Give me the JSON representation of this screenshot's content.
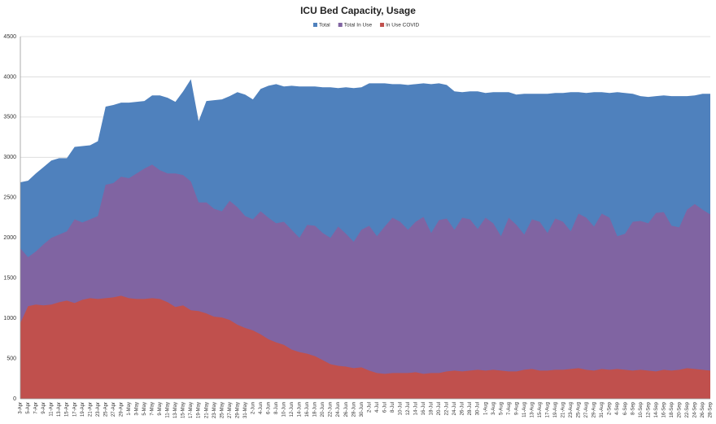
{
  "chart_data": {
    "type": "area",
    "title": "ICU Bed Capacity, Usage",
    "categories": [
      "3-Apr",
      "5-Apr",
      "7-Apr",
      "9-Apr",
      "11-Apr",
      "13-Apr",
      "15-Apr",
      "17-Apr",
      "19-Apr",
      "21-Apr",
      "23-Apr",
      "25-Apr",
      "27-Apr",
      "29-Apr",
      "1-May",
      "3-May",
      "5-May",
      "7-May",
      "9-May",
      "11-May",
      "13-May",
      "15-May",
      "17-May",
      "19-May",
      "21-May",
      "23-May",
      "25-May",
      "27-May",
      "29-May",
      "31-May",
      "2-Jun",
      "4-Jun",
      "6-Jun",
      "8-Jun",
      "10-Jun",
      "12-Jun",
      "14-Jun",
      "16-Jun",
      "18-Jun",
      "20-Jun",
      "22-Jun",
      "24-Jun",
      "26-Jun",
      "28-Jun",
      "30-Jun",
      "2-Jul",
      "4-Jul",
      "6-Jul",
      "8-Jul",
      "10-Jul",
      "12-Jul",
      "14-Jul",
      "16-Jul",
      "18-Jul",
      "20-Jul",
      "22-Jul",
      "24-Jul",
      "26-Jul",
      "28-Jul",
      "30-Jul",
      "1-Aug",
      "3-Aug",
      "5-Aug",
      "7-Aug",
      "9-Aug",
      "11-Aug",
      "13-Aug",
      "15-Aug",
      "17-Aug",
      "19-Aug",
      "21-Aug",
      "23-Aug",
      "25-Aug",
      "27-Aug",
      "29-Aug",
      "31-Aug",
      "2-Sep",
      "4-Sep",
      "6-Sep",
      "8-Sep",
      "10-Sep",
      "12-Sep",
      "14-Sep",
      "16-Sep",
      "18-Sep",
      "20-Sep",
      "22-Sep",
      "24-Sep",
      "26-Sep",
      "28-Sep"
    ],
    "series": [
      {
        "name": "Total",
        "color": "#4f81bd",
        "values": [
          2690,
          2710,
          2800,
          2880,
          2960,
          2990,
          2990,
          3130,
          3140,
          3150,
          3200,
          3630,
          3650,
          3680,
          3680,
          3690,
          3700,
          3770,
          3770,
          3740,
          3690,
          3820,
          3970,
          3450,
          3700,
          3710,
          3720,
          3760,
          3810,
          3780,
          3720,
          3850,
          3890,
          3910,
          3880,
          3890,
          3880,
          3880,
          3880,
          3870,
          3870,
          3860,
          3870,
          3860,
          3870,
          3920,
          3920,
          3920,
          3910,
          3910,
          3900,
          3910,
          3920,
          3910,
          3920,
          3900,
          3820,
          3810,
          3820,
          3820,
          3800,
          3810,
          3810,
          3810,
          3780,
          3790,
          3790,
          3790,
          3790,
          3800,
          3800,
          3810,
          3810,
          3800,
          3810,
          3810,
          3800,
          3810,
          3800,
          3790,
          3760,
          3750,
          3760,
          3770,
          3760,
          3760,
          3760,
          3770,
          3790,
          3790
        ]
      },
      {
        "name": "Total In Use",
        "color": "#8064a2",
        "values": [
          1870,
          1760,
          1830,
          1920,
          2000,
          2040,
          2080,
          2230,
          2190,
          2230,
          2270,
          2660,
          2680,
          2760,
          2740,
          2800,
          2860,
          2910,
          2840,
          2800,
          2800,
          2780,
          2700,
          2440,
          2440,
          2360,
          2330,
          2460,
          2380,
          2270,
          2230,
          2330,
          2250,
          2180,
          2200,
          2100,
          2000,
          2160,
          2150,
          2060,
          2000,
          2140,
          2050,
          1950,
          2100,
          2150,
          2020,
          2140,
          2250,
          2200,
          2100,
          2200,
          2260,
          2060,
          2220,
          2240,
          2100,
          2250,
          2230,
          2110,
          2250,
          2180,
          2020,
          2250,
          2160,
          2040,
          2230,
          2200,
          2060,
          2240,
          2200,
          2080,
          2300,
          2250,
          2140,
          2300,
          2250,
          2020,
          2050,
          2200,
          2210,
          2180,
          2310,
          2320,
          2150,
          2130,
          2350,
          2420,
          2350,
          2290
        ]
      },
      {
        "name": "In Use COVID",
        "color": "#c0504d",
        "values": [
          940,
          1150,
          1170,
          1160,
          1170,
          1200,
          1220,
          1190,
          1230,
          1250,
          1240,
          1250,
          1260,
          1280,
          1250,
          1240,
          1240,
          1250,
          1240,
          1200,
          1140,
          1160,
          1100,
          1090,
          1060,
          1020,
          1010,
          980,
          920,
          880,
          850,
          800,
          740,
          700,
          670,
          610,
          580,
          560,
          530,
          480,
          430,
          410,
          400,
          380,
          390,
          350,
          320,
          310,
          320,
          320,
          320,
          330,
          310,
          320,
          320,
          340,
          350,
          340,
          350,
          360,
          350,
          360,
          350,
          340,
          340,
          360,
          370,
          350,
          350,
          360,
          360,
          370,
          380,
          360,
          350,
          370,
          360,
          370,
          360,
          350,
          360,
          350,
          340,
          360,
          350,
          360,
          380,
          370,
          360,
          350
        ]
      }
    ],
    "ylim": [
      0,
      4500
    ],
    "yticks": [
      0,
      500,
      1000,
      1500,
      2000,
      2500,
      3000,
      3500,
      4000,
      4500
    ],
    "grid": true,
    "legend": "top"
  }
}
